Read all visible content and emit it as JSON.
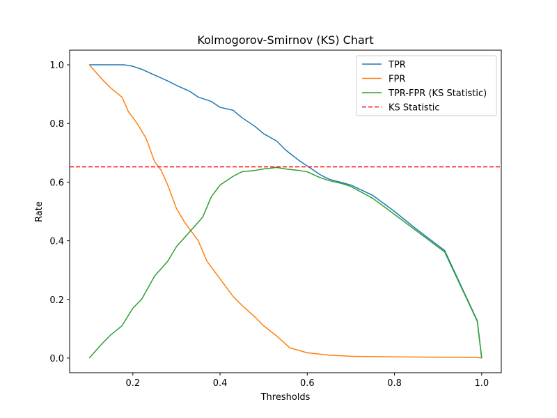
{
  "chart_data": {
    "type": "line",
    "title": "Kolmogorov-Smirnov (KS) Chart",
    "xlabel": "Thresholds",
    "ylabel": "Rate",
    "xlim": [
      0.055,
      1.045
    ],
    "ylim": [
      -0.05,
      1.05
    ],
    "xticks": [
      0.2,
      0.4,
      0.6,
      0.8,
      1.0
    ],
    "xtick_labels": [
      "0.2",
      "0.4",
      "0.6",
      "0.8",
      "1.0"
    ],
    "yticks": [
      0.0,
      0.2,
      0.4,
      0.6,
      0.8,
      1.0
    ],
    "ytick_labels": [
      "0.0",
      "0.2",
      "0.4",
      "0.6",
      "0.8",
      "1.0"
    ],
    "grid": false,
    "legend_position": "top-right",
    "series": [
      {
        "name": "TPR",
        "color": "#1f77b4",
        "style": "solid",
        "x": [
          0.1,
          0.15,
          0.18,
          0.2,
          0.22,
          0.25,
          0.28,
          0.3,
          0.33,
          0.35,
          0.38,
          0.4,
          0.43,
          0.45,
          0.48,
          0.5,
          0.53,
          0.55,
          0.58,
          0.6,
          0.63,
          0.65,
          0.68,
          0.7,
          0.75,
          0.8,
          0.85,
          0.915,
          0.99,
          1.0
        ],
        "y": [
          1.0,
          1.0,
          1.0,
          0.995,
          0.985,
          0.965,
          0.945,
          0.93,
          0.91,
          0.89,
          0.875,
          0.855,
          0.845,
          0.82,
          0.79,
          0.765,
          0.74,
          0.71,
          0.675,
          0.655,
          0.625,
          0.61,
          0.598,
          0.59,
          0.555,
          0.5,
          0.44,
          0.367,
          0.127,
          0.0
        ]
      },
      {
        "name": "FPR",
        "color": "#ff7f0e",
        "style": "solid",
        "x": [
          0.1,
          0.13,
          0.15,
          0.175,
          0.19,
          0.21,
          0.23,
          0.25,
          0.265,
          0.28,
          0.3,
          0.32,
          0.35,
          0.37,
          0.4,
          0.43,
          0.45,
          0.48,
          0.5,
          0.53,
          0.56,
          0.6,
          0.65,
          0.7,
          0.8,
          0.9,
          0.99,
          1.0
        ],
        "y": [
          1.0,
          0.95,
          0.92,
          0.89,
          0.84,
          0.8,
          0.75,
          0.67,
          0.64,
          0.59,
          0.51,
          0.46,
          0.4,
          0.33,
          0.27,
          0.21,
          0.18,
          0.14,
          0.11,
          0.075,
          0.035,
          0.018,
          0.01,
          0.006,
          0.004,
          0.003,
          0.002,
          0.0
        ]
      },
      {
        "name": "TPR-FPR (KS Statistic)",
        "color": "#2ca02c",
        "style": "solid",
        "x": [
          0.1,
          0.13,
          0.15,
          0.175,
          0.2,
          0.22,
          0.25,
          0.28,
          0.3,
          0.33,
          0.36,
          0.38,
          0.4,
          0.43,
          0.45,
          0.48,
          0.5,
          0.53,
          0.55,
          0.58,
          0.6,
          0.63,
          0.65,
          0.68,
          0.7,
          0.75,
          0.8,
          0.915,
          0.99,
          1.0
        ],
        "y": [
          0.0,
          0.05,
          0.08,
          0.11,
          0.17,
          0.2,
          0.28,
          0.33,
          0.38,
          0.43,
          0.48,
          0.55,
          0.59,
          0.62,
          0.635,
          0.64,
          0.645,
          0.65,
          0.645,
          0.64,
          0.635,
          0.615,
          0.605,
          0.595,
          0.585,
          0.545,
          0.49,
          0.362,
          0.125,
          0.0
        ]
      },
      {
        "name": "KS Statistic",
        "color": "#ff0000",
        "style": "dashed",
        "type": "hline",
        "y": 0.652
      }
    ]
  }
}
